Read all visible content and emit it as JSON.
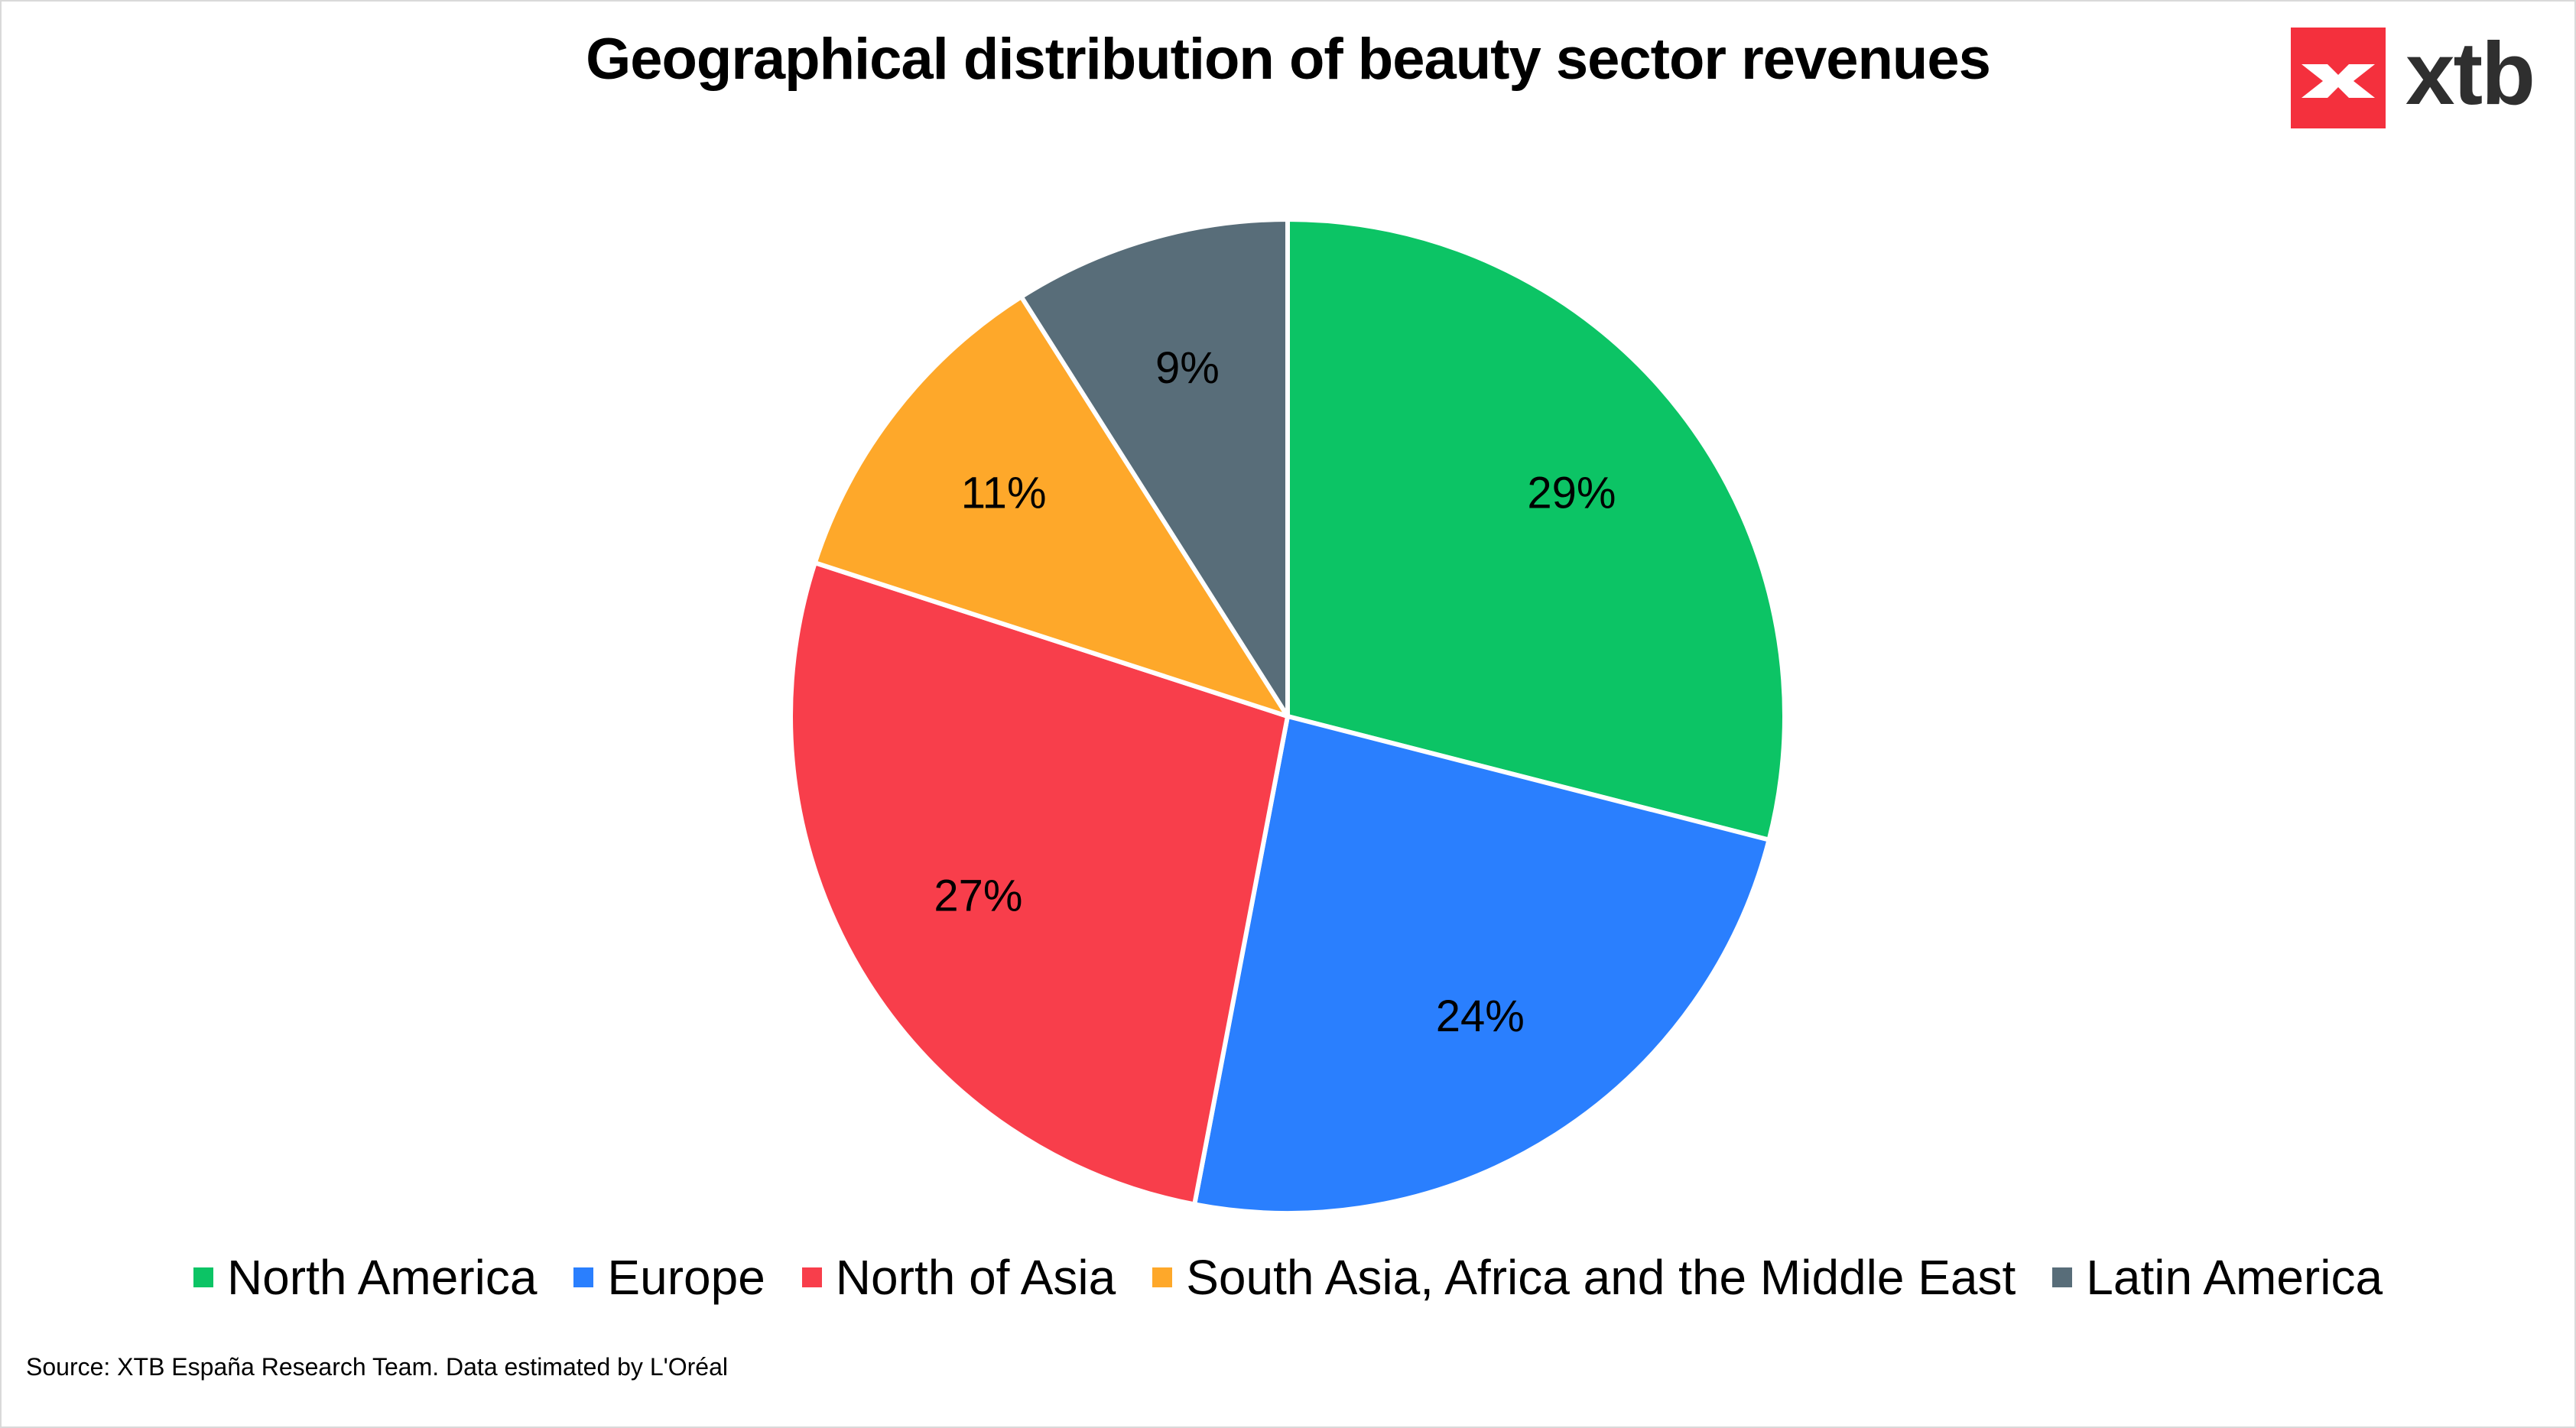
{
  "title": "Geographical distribution of beauty sector revenues",
  "logo": {
    "text": "xtb",
    "brand_color": "#f4303d"
  },
  "source": "Source: XTB España Research Team. Data estimated by L'Oréal",
  "chart_data": {
    "type": "pie",
    "title": "Geographical distribution of beauty sector revenues",
    "legend_position": "bottom",
    "slices": [
      {
        "name": "North America",
        "value": 29,
        "label": "29%",
        "color": "#0cc465"
      },
      {
        "name": "Europe",
        "value": 24,
        "label": "24%",
        "color": "#2a7ffe"
      },
      {
        "name": "North of Asia",
        "value": 27,
        "label": "27%",
        "color": "#f83e4b"
      },
      {
        "name": "South Asia, Africa and the Middle East",
        "value": 11,
        "label": "11%",
        "color": "#fea82a"
      },
      {
        "name": "Latin America",
        "value": 9,
        "label": "9%",
        "color": "#586d79"
      }
    ]
  }
}
